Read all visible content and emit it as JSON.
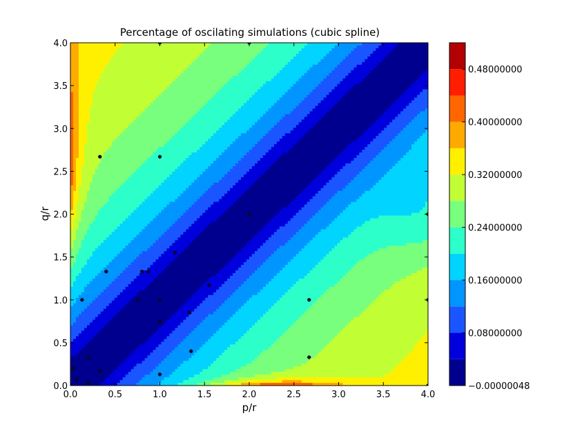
{
  "chart_data": {
    "type": "contourf",
    "title": "Percentage of oscilating simulations (cubic spline)",
    "xlabel": "p/r",
    "ylabel": "q/r",
    "xlim": [
      0.0,
      4.0
    ],
    "ylim": [
      0.0,
      4.0
    ],
    "xticks": [
      "0.0",
      "0.5",
      "1.0",
      "1.5",
      "2.0",
      "2.5",
      "3.0",
      "3.5",
      "4.0"
    ],
    "yticks": [
      "0.0",
      "0.5",
      "1.0",
      "1.5",
      "2.0",
      "2.5",
      "3.0",
      "3.5",
      "4.0"
    ],
    "colorbar": {
      "levels": [
        -4.8e-07,
        0.04,
        0.08,
        0.12,
        0.16,
        0.2,
        0.24,
        0.28,
        0.32,
        0.36,
        0.4,
        0.44,
        0.48,
        0.52
      ],
      "tick_values": [
        -4.8e-07,
        0.08,
        0.16,
        0.24,
        0.32,
        0.4,
        0.48
      ],
      "tick_labels": [
        "−0.00000048",
        "0.08000000",
        "0.16000000",
        "0.24000000",
        "0.32000000",
        "0.40000000",
        "0.48000000"
      ],
      "colors": [
        "#00008f",
        "#0000dd",
        "#1a56ff",
        "#0095ff",
        "#00d4ff",
        "#2cffc9",
        "#78ff7d",
        "#c1ff34",
        "#fff000",
        "#ffaa00",
        "#ff6600",
        "#ff1e00",
        "#b30000"
      ]
    },
    "sample_points": [
      {
        "x": 0.0,
        "y": 0.0
      },
      {
        "x": 0.03,
        "y": 0.2
      },
      {
        "x": 0.07,
        "y": 0.07
      },
      {
        "x": 0.13,
        "y": 1.0
      },
      {
        "x": 0.2,
        "y": 0.03
      },
      {
        "x": 0.2,
        "y": 0.33
      },
      {
        "x": 0.33,
        "y": 2.67
      },
      {
        "x": 0.33,
        "y": 0.17
      },
      {
        "x": 0.4,
        "y": 1.33
      },
      {
        "x": 0.75,
        "y": 1.0
      },
      {
        "x": 0.8,
        "y": 1.33
      },
      {
        "x": 0.87,
        "y": 1.33
      },
      {
        "x": 1.0,
        "y": 4.0
      },
      {
        "x": 1.0,
        "y": 2.67
      },
      {
        "x": 1.0,
        "y": 1.0
      },
      {
        "x": 1.0,
        "y": 0.75
      },
      {
        "x": 1.0,
        "y": 0.13
      },
      {
        "x": 1.17,
        "y": 1.55
      },
      {
        "x": 1.33,
        "y": 0.85
      },
      {
        "x": 1.35,
        "y": 0.4
      },
      {
        "x": 1.55,
        "y": 1.17
      },
      {
        "x": 2.0,
        "y": 4.0
      },
      {
        "x": 2.0,
        "y": 2.0
      },
      {
        "x": 2.67,
        "y": 1.0
      },
      {
        "x": 2.67,
        "y": 0.33
      },
      {
        "x": 4.0,
        "y": 2.0
      },
      {
        "x": 4.0,
        "y": 1.0
      },
      {
        "x": 4.0,
        "y": 0.0
      }
    ]
  }
}
